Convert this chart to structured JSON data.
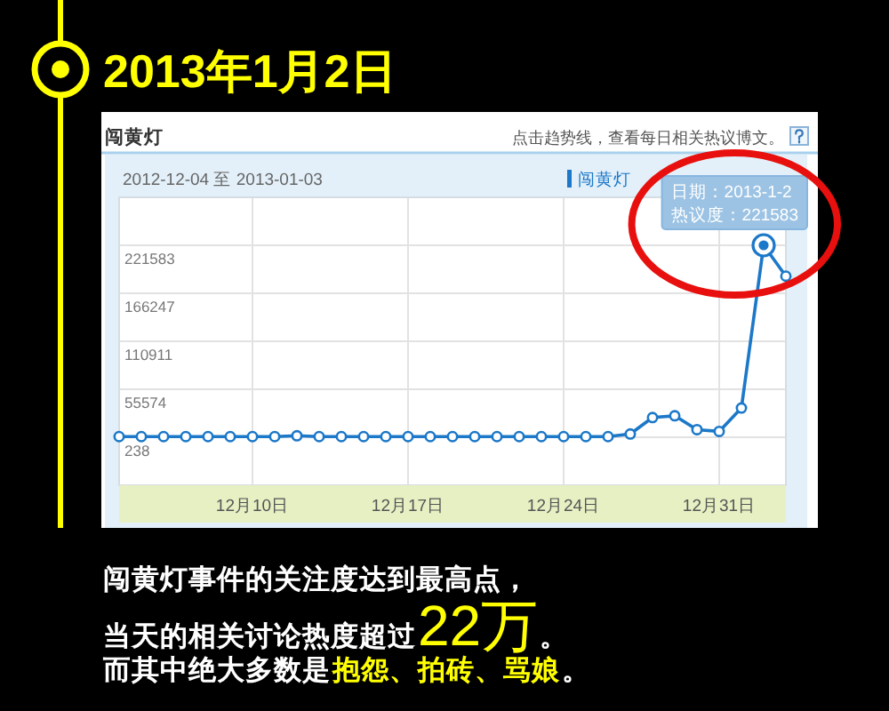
{
  "chart_data": {
    "type": "line",
    "title": "2013年1月2日",
    "subtitle": "闯黄灯",
    "x": [
      "2012-12-04",
      "2012-12-05",
      "2012-12-06",
      "2012-12-07",
      "2012-12-08",
      "2012-12-09",
      "2012-12-10",
      "2012-12-11",
      "2012-12-12",
      "2012-12-13",
      "2012-12-14",
      "2012-12-15",
      "2012-12-16",
      "2012-12-17",
      "2012-12-18",
      "2012-12-19",
      "2012-12-20",
      "2012-12-21",
      "2012-12-22",
      "2012-12-23",
      "2012-12-24",
      "2012-12-25",
      "2012-12-26",
      "2012-12-27",
      "2012-12-28",
      "2012-12-29",
      "2012-12-30",
      "2012-12-31",
      "2013-01-01",
      "2013-01-02",
      "2013-01-03"
    ],
    "series": [
      {
        "name": "闯黄灯",
        "color": "#1c78c8",
        "values": [
          1000,
          1000,
          1000,
          1000,
          1000,
          1000,
          1000,
          1000,
          2000,
          1000,
          1000,
          1000,
          1000,
          1000,
          1000,
          1000,
          1000,
          1000,
          1000,
          1000,
          1000,
          1000,
          1000,
          4000,
          23000,
          25000,
          9000,
          7000,
          34000,
          221583,
          186000
        ]
      }
    ],
    "xlim": [
      "2012-12-04",
      "2013-01-03"
    ],
    "xticks": [
      {
        "value": "2012-12-10",
        "label": "12月10日"
      },
      {
        "value": "2012-12-17",
        "label": "12月17日"
      },
      {
        "value": "2012-12-24",
        "label": "12月24日"
      },
      {
        "value": "2012-12-31",
        "label": "12月31日"
      }
    ],
    "ylim": [
      -55098,
      276919
    ],
    "yticks": [
      238,
      55574,
      110911,
      166247,
      221583
    ],
    "grid": true,
    "legend": "top right",
    "marker": "circle",
    "annotations": [
      "2012-12-04 至 2013-01-03",
      "点击趋势线，查看每日相关热议博文。",
      {
        "text": "日期：2013-1-2\n热议度：221583",
        "x": "2013-01-02",
        "y": 221583
      },
      "闯黄灯事件的关注度达到最高点，",
      "当天的相关讨论热度超过",
      "22万",
      "。",
      "而其中绝大多数是",
      "抱怨、拍砖、骂娘",
      "。"
    ]
  }
}
